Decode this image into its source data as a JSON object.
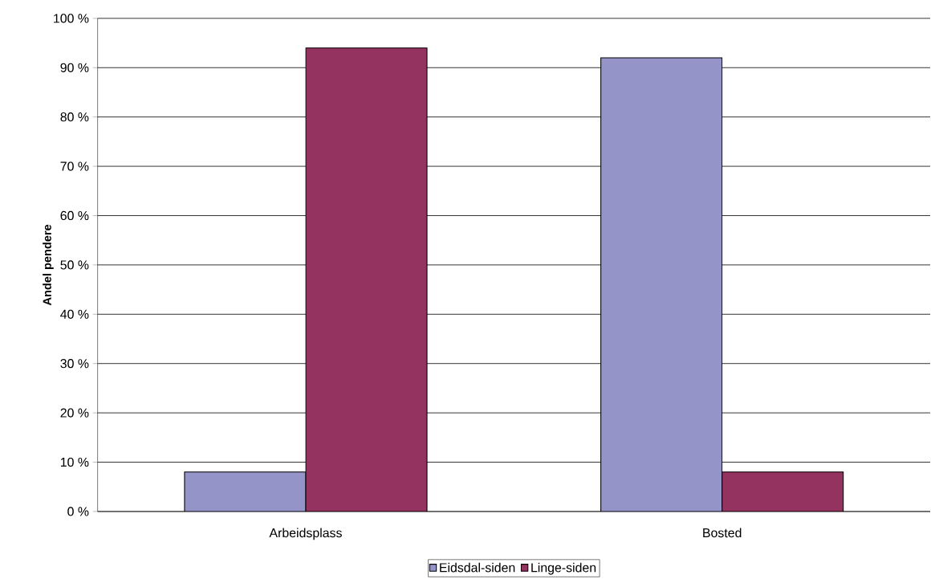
{
  "chart_data": {
    "type": "bar",
    "ylabel": "Andel pendere",
    "categories": [
      "Arbeidsplass",
      "Bosted"
    ],
    "series": [
      {
        "name": "Eidsdal-siden",
        "color": "#9494c8",
        "values": [
          8,
          92
        ]
      },
      {
        "name": "Linge-siden",
        "color": "#953360",
        "values": [
          94,
          8
        ]
      }
    ],
    "ylim": [
      0,
      100
    ],
    "yticks": [
      {
        "value": 0,
        "label": "0 %"
      },
      {
        "value": 10,
        "label": "10 %"
      },
      {
        "value": 20,
        "label": "20 %"
      },
      {
        "value": 30,
        "label": "30 %"
      },
      {
        "value": 40,
        "label": "40 %"
      },
      {
        "value": 50,
        "label": "50 %"
      },
      {
        "value": 60,
        "label": "60 %"
      },
      {
        "value": 70,
        "label": "70 %"
      },
      {
        "value": 80,
        "label": "80 %"
      },
      {
        "value": 90,
        "label": "90 %"
      },
      {
        "value": 100,
        "label": "100 %"
      }
    ],
    "grid": "y",
    "legend": "bottom"
  }
}
